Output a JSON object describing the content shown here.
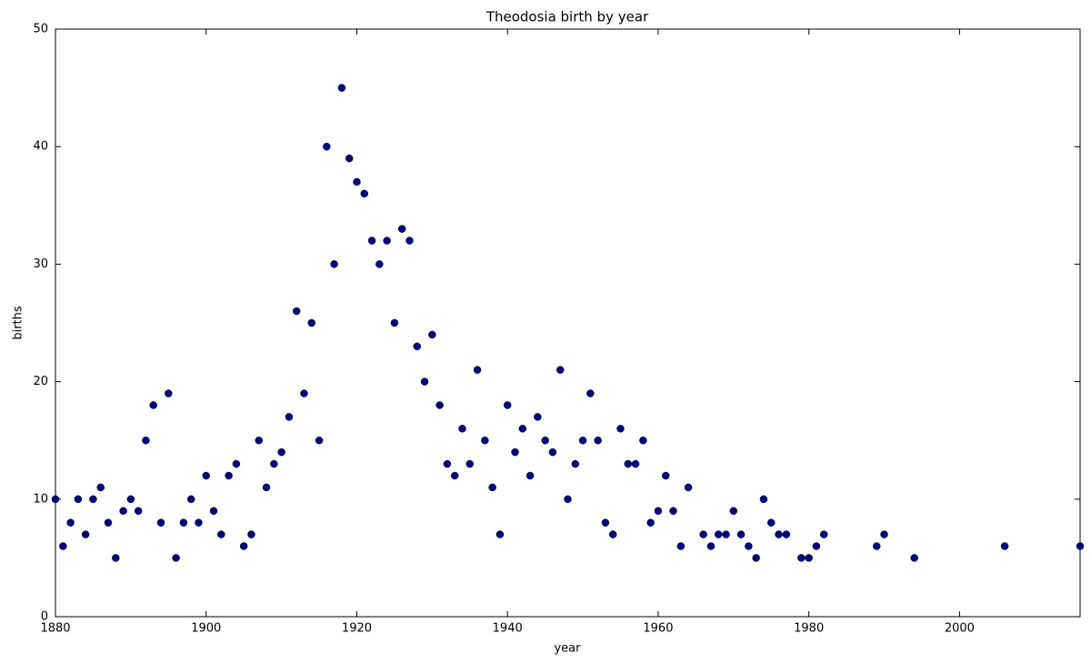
{
  "chart_data": {
    "type": "scatter",
    "title": "Theodosia birth by year",
    "x_label": "year",
    "y_label": "births",
    "x": [
      1880,
      1881,
      1882,
      1883,
      1884,
      1885,
      1886,
      1887,
      1888,
      1889,
      1890,
      1891,
      1892,
      1893,
      1894,
      1895,
      1896,
      1897,
      1898,
      1899,
      1900,
      1901,
      1902,
      1903,
      1904,
      1905,
      1906,
      1907,
      1908,
      1909,
      1910,
      1911,
      1912,
      1913,
      1914,
      1915,
      1916,
      1917,
      1918,
      1919,
      1920,
      1921,
      1922,
      1923,
      1924,
      1925,
      1926,
      1927,
      1928,
      1929,
      1930,
      1931,
      1932,
      1933,
      1934,
      1935,
      1936,
      1937,
      1938,
      1939,
      1940,
      1941,
      1942,
      1943,
      1944,
      1945,
      1946,
      1947,
      1948,
      1949,
      1950,
      1951,
      1952,
      1953,
      1954,
      1955,
      1956,
      1957,
      1958,
      1959,
      1960,
      1961,
      1962,
      1963,
      1964,
      1966,
      1967,
      1968,
      1969,
      1970,
      1971,
      1972,
      1973,
      1974,
      1975,
      1976,
      1977,
      1979,
      1980,
      1981,
      1982,
      1989,
      1990,
      1994,
      2006,
      2016
    ],
    "values": [
      10,
      6,
      8,
      10,
      7,
      10,
      11,
      8,
      5,
      9,
      10,
      9,
      15,
      18,
      8,
      19,
      5,
      8,
      10,
      8,
      12,
      9,
      7,
      12,
      13,
      6,
      7,
      15,
      11,
      13,
      14,
      17,
      26,
      19,
      25,
      15,
      40,
      30,
      45,
      39,
      37,
      36,
      32,
      30,
      32,
      25,
      33,
      32,
      23,
      20,
      24,
      18,
      13,
      12,
      16,
      13,
      21,
      15,
      11,
      7,
      18,
      14,
      16,
      12,
      17,
      15,
      14,
      21,
      10,
      13,
      15,
      19,
      15,
      8,
      7,
      16,
      13,
      13,
      15,
      8,
      9,
      12,
      9,
      6,
      11,
      7,
      6,
      7,
      7,
      9,
      7,
      6,
      5,
      10,
      8,
      7,
      7,
      5,
      5,
      6,
      7,
      6,
      7,
      5,
      6,
      6
    ],
    "color": "#000080",
    "xlim": [
      1880,
      2016
    ],
    "ylim": [
      0,
      50
    ],
    "xticks": [
      1880,
      1900,
      1920,
      1940,
      1960,
      1980,
      2000
    ],
    "yticks": [
      0,
      10,
      20,
      30,
      40,
      50
    ],
    "grid": false
  }
}
